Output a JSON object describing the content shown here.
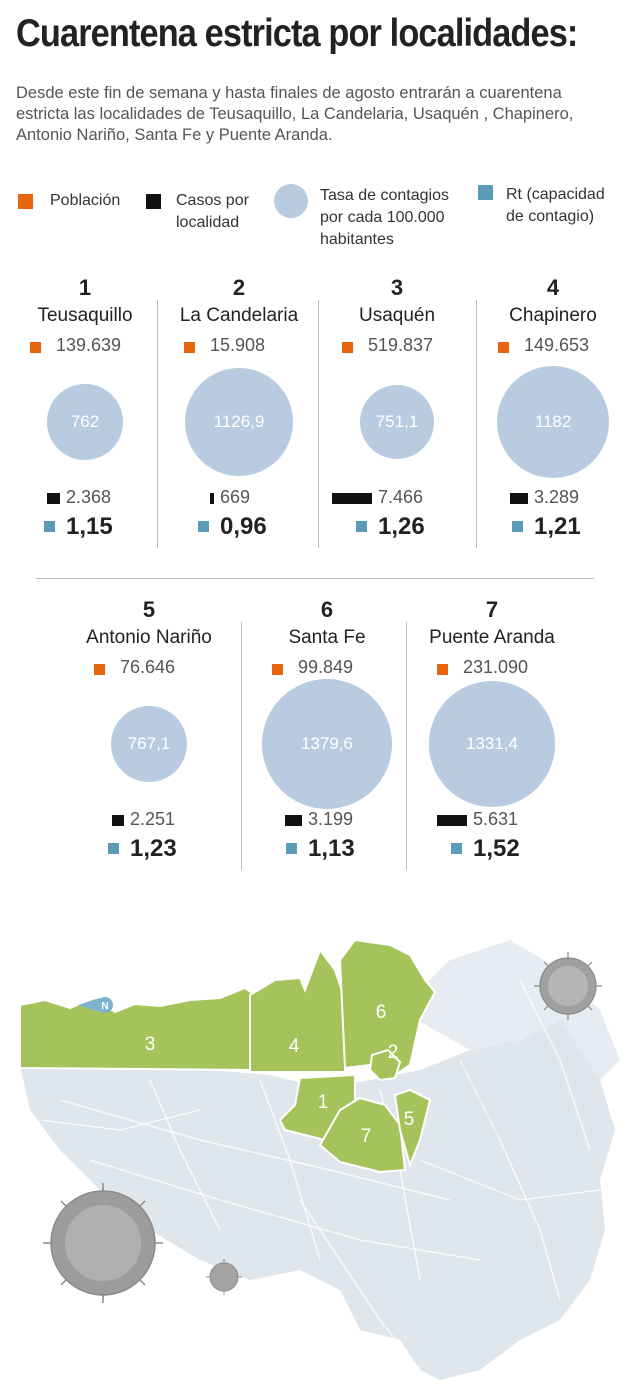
{
  "title": "Cuarentena estricta por localidades:",
  "subtitle": "Desde este fin de semana y hasta finales de agosto entrarán a cuarentena estricta las localidades de Teusaquillo, La Candelaria, Usaquén , Chapinero, Antonio Nariño, Santa Fe y Puente Aranda.",
  "legend": {
    "population": "Población",
    "cases": "Casos por localidad",
    "rate": "Tasa de contagios por cada 100.000 habitantes",
    "rt": "Rt (capacidad de contagio)"
  },
  "colors": {
    "population": "#e8650f",
    "cases": "#111111",
    "rate": "#b8cbe0",
    "rt": "#5b9bb8",
    "map_highlight": "#a4c45b",
    "map_base": "#dfe6ec"
  },
  "chart_data": {
    "type": "table",
    "columns": [
      "Localidad",
      "Población",
      "Tasa de contagios por cada 100.000 habitantes",
      "Casos por localidad",
      "Rt"
    ],
    "rows": [
      {
        "rank": "1",
        "name": "Teusaquillo",
        "population": "139.639",
        "rate": "762",
        "cases": "2.368",
        "rt": "1,15",
        "rate_value": 762,
        "cases_value": 2368
      },
      {
        "rank": "2",
        "name": "La Candelaria",
        "population": "15.908",
        "rate": "1126,9",
        "cases": "669",
        "rt": "0,96",
        "rate_value": 1126.9,
        "cases_value": 669
      },
      {
        "rank": "3",
        "name": "Usaquén",
        "population": "519.837",
        "rate": "751,1",
        "cases": "7.466",
        "rt": "1,26",
        "rate_value": 751.1,
        "cases_value": 7466
      },
      {
        "rank": "4",
        "name": "Chapinero",
        "population": "149.653",
        "rate": "1182",
        "cases": "3.289",
        "rt": "1,21",
        "rate_value": 1182,
        "cases_value": 3289
      },
      {
        "rank": "5",
        "name": "Antonio Nariño",
        "population": "76.646",
        "rate": "767,1",
        "cases": "2.251",
        "rt": "1,23",
        "rate_value": 767.1,
        "cases_value": 2251
      },
      {
        "rank": "6",
        "name": "Santa Fe",
        "population": "99.849",
        "rate": "1379,6",
        "cases": "3.199",
        "rt": "1,13",
        "rate_value": 1379.6,
        "cases_value": 3199
      },
      {
        "rank": "7",
        "name": "Puente Aranda",
        "population": "231.090",
        "rate": "1331,4",
        "cases": "5.631",
        "rt": "1,52",
        "rate_value": 1331.4,
        "cases_value": 5631
      }
    ]
  },
  "map": {
    "north_label": "N",
    "region_labels": [
      "1",
      "2",
      "3",
      "4",
      "5",
      "6",
      "7"
    ]
  }
}
